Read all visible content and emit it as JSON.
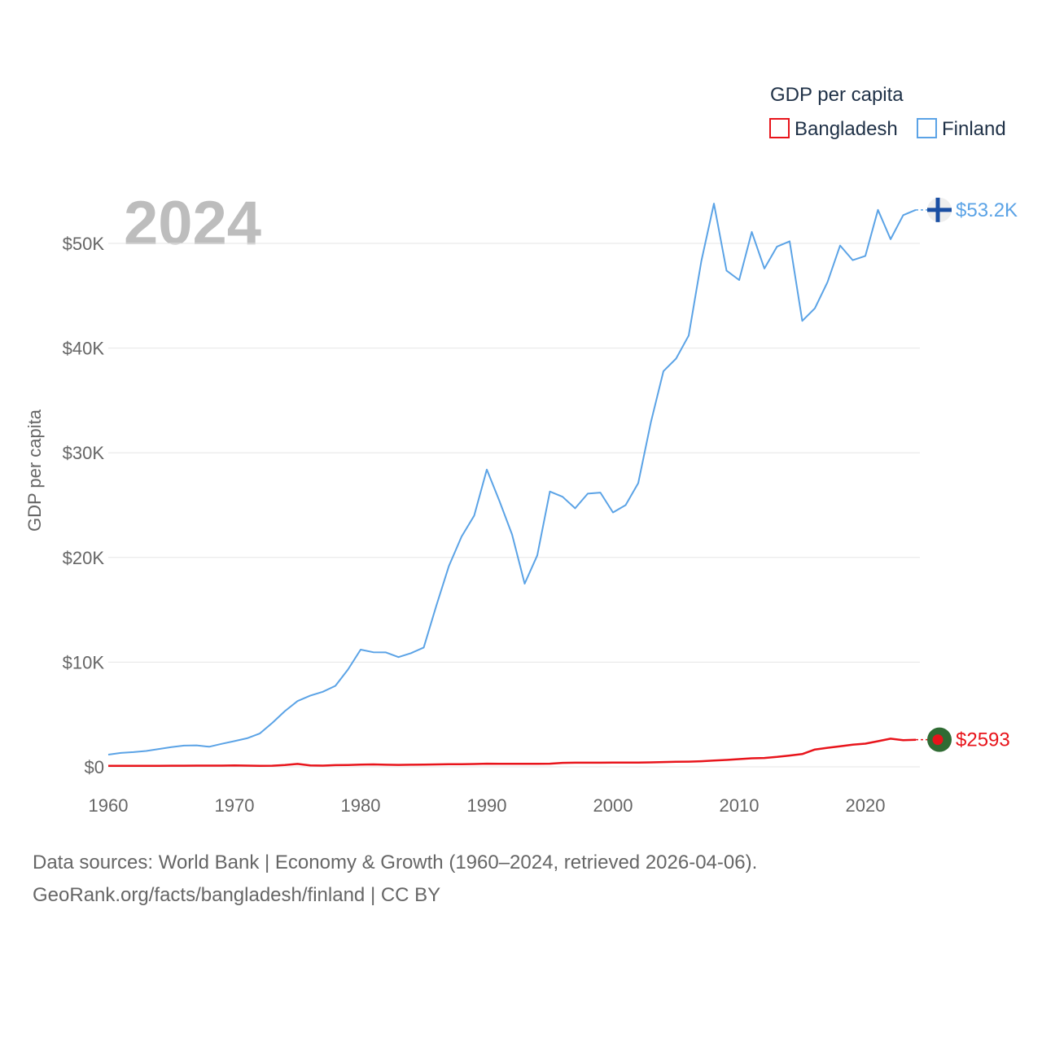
{
  "chart_data": {
    "type": "line",
    "title": "GDP per capita",
    "ylabel": "GDP per capita",
    "xlabel": "",
    "year_label": "2024",
    "xlim": [
      1960,
      2024
    ],
    "ylim": [
      0,
      55000
    ],
    "x_ticks": [
      1960,
      1970,
      1980,
      1990,
      2000,
      2010,
      2020
    ],
    "x_tick_labels": [
      "1960",
      "1970",
      "1980",
      "1990",
      "2000",
      "2010",
      "2020"
    ],
    "y_ticks": [
      0,
      10000,
      20000,
      30000,
      40000,
      50000
    ],
    "y_tick_labels": [
      "$0",
      "$10K",
      "$20K",
      "$30K",
      "$40K",
      "$50K"
    ],
    "legend_title": "GDP per capita",
    "legend_position": "top-right",
    "x": [
      1960,
      1961,
      1962,
      1963,
      1964,
      1965,
      1966,
      1967,
      1968,
      1969,
      1970,
      1971,
      1972,
      1973,
      1974,
      1975,
      1976,
      1977,
      1978,
      1979,
      1980,
      1981,
      1982,
      1983,
      1984,
      1985,
      1986,
      1987,
      1988,
      1989,
      1990,
      1991,
      1992,
      1993,
      1994,
      1995,
      1996,
      1997,
      1998,
      1999,
      2000,
      2001,
      2002,
      2003,
      2004,
      2005,
      2006,
      2007,
      2008,
      2009,
      2010,
      2011,
      2012,
      2013,
      2014,
      2015,
      2016,
      2017,
      2018,
      2019,
      2020,
      2021,
      2022,
      2023,
      2024
    ],
    "series": [
      {
        "name": "Bangladesh",
        "color": "#e8141b",
        "end_label": "$2593",
        "values": [
          90,
          95,
          98,
          100,
          102,
          105,
          110,
          115,
          118,
          120,
          130,
          120,
          90,
          110,
          180,
          280,
          140,
          120,
          160,
          180,
          220,
          230,
          200,
          190,
          200,
          220,
          230,
          250,
          260,
          270,
          300,
          290,
          290,
          290,
          290,
          300,
          380,
          400,
          400,
          400,
          410,
          410,
          410,
          430,
          460,
          480,
          500,
          540,
          600,
          660,
          740,
          820,
          850,
          950,
          1080,
          1220,
          1660,
          1820,
          1960,
          2120,
          2220,
          2450,
          2690,
          2550,
          2593
        ]
      },
      {
        "name": "Finland",
        "color": "#5ba3e6",
        "end_label": "$53.2K",
        "values": [
          1170,
          1330,
          1410,
          1520,
          1700,
          1880,
          2030,
          2050,
          1920,
          2200,
          2460,
          2730,
          3180,
          4200,
          5330,
          6280,
          6800,
          7170,
          7740,
          9300,
          11200,
          10950,
          10930,
          10480,
          10860,
          11400,
          15400,
          19200,
          22000,
          24000,
          28400,
          25400,
          22200,
          17500,
          20200,
          26300,
          25800,
          24700,
          26100,
          26200,
          24300,
          25000,
          27100,
          32900,
          37800,
          39000,
          41200,
          48300,
          53800,
          47400,
          46500,
          51100,
          47600,
          49700,
          50200,
          42600,
          43800,
          46300,
          49800,
          48400,
          48800,
          53200,
          50400,
          52700,
          53200
        ]
      }
    ]
  },
  "footer": {
    "line1": "Data sources: World Bank | Economy & Growth (1960–2024, retrieved 2026-04-06).",
    "line2": "GeoRank.org/facts/bangladesh/finland | CC BY"
  }
}
